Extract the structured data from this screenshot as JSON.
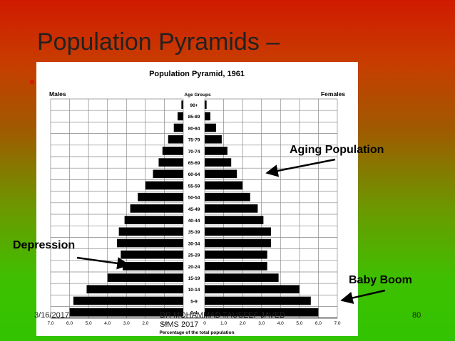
{
  "slide": {
    "title": "Population Pyramids –",
    "footer_date": "3/16/2017",
    "footer_author_line1": "DR MOHAMMAD TAUSEEF JAVED",
    "footer_author_line2": "SIMS 2017",
    "page_number": "80"
  },
  "annotations": {
    "aging": "Aging Population",
    "depression": "Depression",
    "baby_boom": "Baby Boom"
  },
  "chart_data": {
    "type": "bar",
    "title": "Population Pyramid, 1961",
    "males_label": "Males",
    "females_label": "Females",
    "age_header": "Age Groups",
    "xlabel": "Percentage of the total population",
    "categories": [
      "90+",
      "85-89",
      "80-84",
      "75-79",
      "70-74",
      "65-69",
      "60-64",
      "55-59",
      "50-54",
      "45-49",
      "40-44",
      "35-39",
      "30-34",
      "25-29",
      "20-24",
      "15-19",
      "10-14",
      "5-9",
      "0-4"
    ],
    "series": [
      {
        "name": "Males",
        "values": [
          0.1,
          0.3,
          0.5,
          0.8,
          1.1,
          1.3,
          1.6,
          2.0,
          2.4,
          2.8,
          3.1,
          3.4,
          3.5,
          3.3,
          3.2,
          4.0,
          5.1,
          5.8,
          6.0
        ]
      },
      {
        "name": "Females",
        "values": [
          0.1,
          0.3,
          0.6,
          0.9,
          1.2,
          1.4,
          1.7,
          2.0,
          2.4,
          2.8,
          3.1,
          3.5,
          3.5,
          3.3,
          3.3,
          3.9,
          5.0,
          5.6,
          6.0
        ]
      }
    ],
    "xticks_left": [
      "7.0",
      "6.0",
      "5.0",
      "4.0",
      "3.0",
      "2.0",
      "1.0",
      "0"
    ],
    "xticks_right": [
      "0",
      "1.0",
      "2.0",
      "3.0",
      "4.0",
      "5.0",
      "6.0",
      "7.0"
    ],
    "xlim": [
      0,
      7
    ]
  }
}
